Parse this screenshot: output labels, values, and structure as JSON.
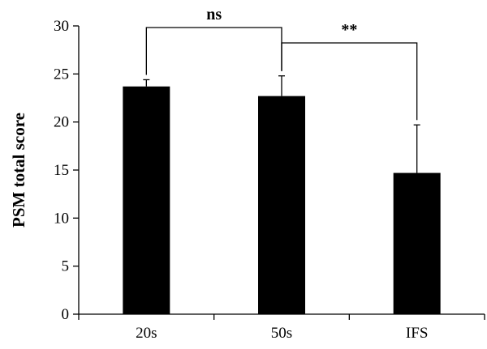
{
  "chart_data": {
    "type": "bar",
    "categories": [
      "20s",
      "50s",
      "IFS"
    ],
    "series": [
      {
        "values": [
          23.7,
          22.7,
          14.7
        ],
        "errors": [
          0.7,
          2.1,
          5.0
        ]
      }
    ],
    "ylabel": "PSM total score",
    "xlabel": "",
    "ylim": [
      0,
      30
    ],
    "yticks": [
      0,
      5,
      10,
      15,
      20,
      25,
      30
    ],
    "grid": false,
    "bar_color": "#000000",
    "annotations": [
      {
        "from": "20s",
        "to": "50s",
        "label": "ns"
      },
      {
        "from": "50s",
        "to": "IFS",
        "label": "**"
      }
    ]
  }
}
